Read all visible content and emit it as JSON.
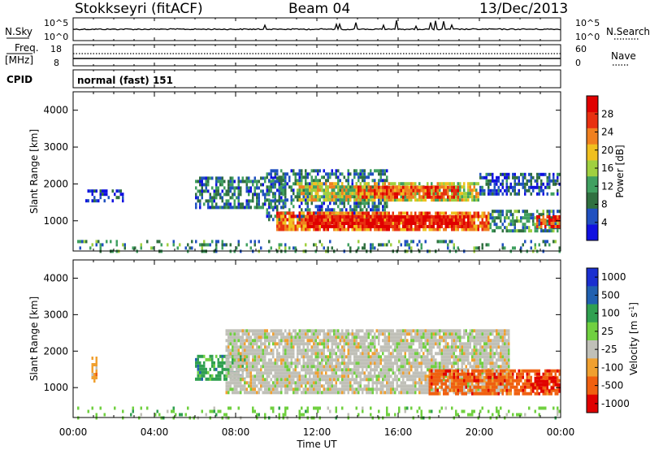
{
  "header": {
    "station": "Stokkseyri (fitACF)",
    "beam": "Beam 04",
    "date": "13/Dec/2013"
  },
  "top_panels": {
    "nsky_label": "N.Sky",
    "nsky_ticks": [
      "10^5",
      "10^0"
    ],
    "nsearch_label": "N.Search",
    "nsearch_ticks": [
      "10^5",
      "10^0"
    ],
    "freq_label": "Freq.",
    "freq_unit": "[MHz]",
    "freq_ticks": [
      "18",
      "8"
    ],
    "nave_label": "Nave",
    "nave_ticks": [
      "60",
      "0"
    ],
    "cpid_label": "CPID",
    "cpid_value": "normal (fast) 151"
  },
  "chart_data": [
    {
      "type": "heatmap",
      "name": "power-panel",
      "ylabel": "Slant Range [km]",
      "xlabel": "",
      "ylim": [
        180,
        4500
      ],
      "xlim_hours": [
        0,
        24
      ],
      "y_ticks": [
        "1000",
        "2000",
        "3000",
        "4000"
      ],
      "y_tick_values": [
        1000,
        2000,
        3000,
        4000
      ],
      "colorbar": {
        "label": "Power [dB]",
        "ticks": [
          "4",
          "8",
          "12",
          "16",
          "20",
          "24",
          "28"
        ],
        "tick_values": [
          4,
          8,
          12,
          16,
          20,
          24,
          28
        ],
        "range": [
          0,
          32
        ],
        "colors": [
          "#1010e0",
          "#2050c0",
          "#307040",
          "#40a060",
          "#a0d040",
          "#f0c020",
          "#f08020",
          "#e83010",
          "#e00000"
        ]
      },
      "regions": [
        {
          "x": [
            0.0,
            24.0
          ],
          "y": [
            200,
            480
          ],
          "level": 10,
          "density": 0.22
        },
        {
          "x": [
            0.6,
            2.5
          ],
          "y": [
            1500,
            1850
          ],
          "level": 4,
          "density": 0.45
        },
        {
          "x": [
            6.0,
            10.5
          ],
          "y": [
            1400,
            2200
          ],
          "level": 8,
          "density": 0.6
        },
        {
          "x": [
            9.5,
            15.5
          ],
          "y": [
            1000,
            2400
          ],
          "level": 8,
          "density": 0.55
        },
        {
          "x": [
            10.0,
            20.5
          ],
          "y": [
            750,
            1250
          ],
          "level": 24,
          "density": 0.85
        },
        {
          "x": [
            11.5,
            19.5
          ],
          "y": [
            850,
            1150
          ],
          "level": 30,
          "density": 0.9
        },
        {
          "x": [
            11.0,
            20.0
          ],
          "y": [
            1550,
            2050
          ],
          "level": 18,
          "density": 0.8
        },
        {
          "x": [
            14.0,
            19.0
          ],
          "y": [
            1650,
            1950
          ],
          "level": 26,
          "density": 0.75
        },
        {
          "x": [
            20.0,
            24.0
          ],
          "y": [
            1700,
            2300
          ],
          "level": 6,
          "density": 0.6
        },
        {
          "x": [
            20.5,
            24.0
          ],
          "y": [
            750,
            1300
          ],
          "level": 10,
          "density": 0.65
        },
        {
          "x": [
            22.8,
            24.0
          ],
          "y": [
            850,
            1150
          ],
          "level": 28,
          "density": 0.7
        }
      ]
    },
    {
      "type": "heatmap",
      "name": "velocity-panel",
      "ylabel": "Slant Range [km]",
      "xlabel": "Time UT",
      "ylim": [
        180,
        4500
      ],
      "xlim_hours": [
        0,
        24
      ],
      "y_ticks": [
        "1000",
        "2000",
        "3000",
        "4000"
      ],
      "y_tick_values": [
        1000,
        2000,
        3000,
        4000
      ],
      "x_ticks": [
        "00:00",
        "04:00",
        "08:00",
        "12:00",
        "16:00",
        "20:00",
        "00:00"
      ],
      "x_tick_hours": [
        0,
        4,
        8,
        12,
        16,
        20,
        24
      ],
      "colorbar": {
        "label": "Velocity [m s",
        "label_sup": "-1",
        "label_close": "]",
        "ticks": [
          "1000",
          "500",
          "100",
          "25",
          "-25",
          "-100",
          "-500",
          "-1000"
        ],
        "colors": [
          "#1a2fd0",
          "#2060b0",
          "#30a050",
          "#70d040",
          "#c0c0b8",
          "#f0a030",
          "#f06010",
          "#e00000"
        ]
      },
      "regions": [
        {
          "x": [
            0.0,
            24.0
          ],
          "y": [
            200,
            480
          ],
          "vbin": 3,
          "density": 0.18
        },
        {
          "x": [
            0.9,
            1.2
          ],
          "y": [
            1150,
            1850
          ],
          "vbin": 5,
          "density": 0.7
        },
        {
          "x": [
            6.0,
            8.5
          ],
          "y": [
            1200,
            1900
          ],
          "vbin": 2,
          "density": 0.7
        },
        {
          "x": [
            7.5,
            21.5
          ],
          "y": [
            850,
            2600
          ],
          "vbin": 4,
          "density": 0.85
        },
        {
          "x": [
            17.5,
            24.0
          ],
          "y": [
            800,
            1500
          ],
          "vbin": 6,
          "density": 0.8
        },
        {
          "x": [
            22.5,
            24.0
          ],
          "y": [
            900,
            1300
          ],
          "vbin": 7,
          "density": 0.6
        }
      ]
    }
  ]
}
